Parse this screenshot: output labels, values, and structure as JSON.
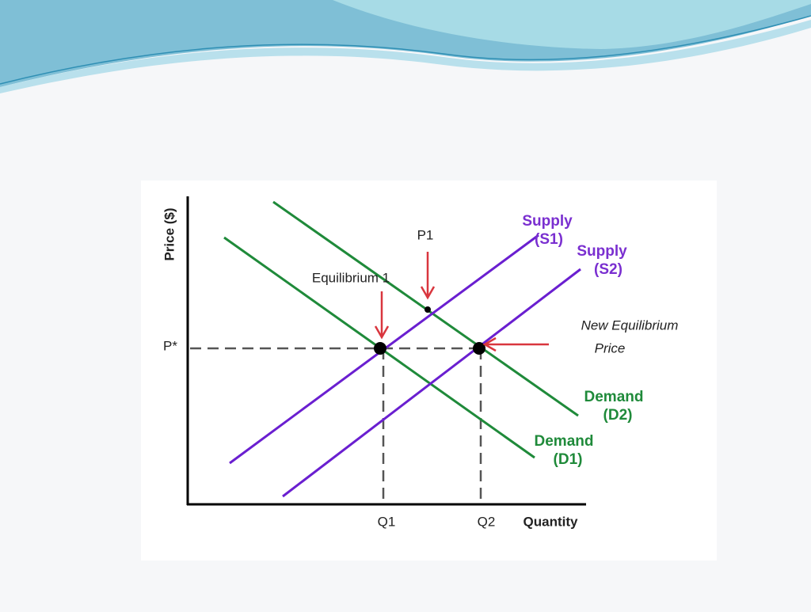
{
  "diagram": {
    "y_axis_label": "Price ($)",
    "x_axis_label": "Quantity",
    "price_label": "P*",
    "quantity_labels": [
      "Q1",
      "Q2"
    ],
    "p1_label": "P1",
    "equilibrium_label": "Equilibrium 1",
    "new_equilibrium_label": [
      "New Equilibrium",
      "Price"
    ],
    "supply_curves": [
      {
        "name": "Supply",
        "id": "(S1)"
      },
      {
        "name": "Supply",
        "id": "(S2)"
      }
    ],
    "demand_curves": [
      {
        "name": "Demand",
        "id": "(D1)"
      },
      {
        "name": "Demand",
        "id": "(D2)"
      }
    ]
  }
}
